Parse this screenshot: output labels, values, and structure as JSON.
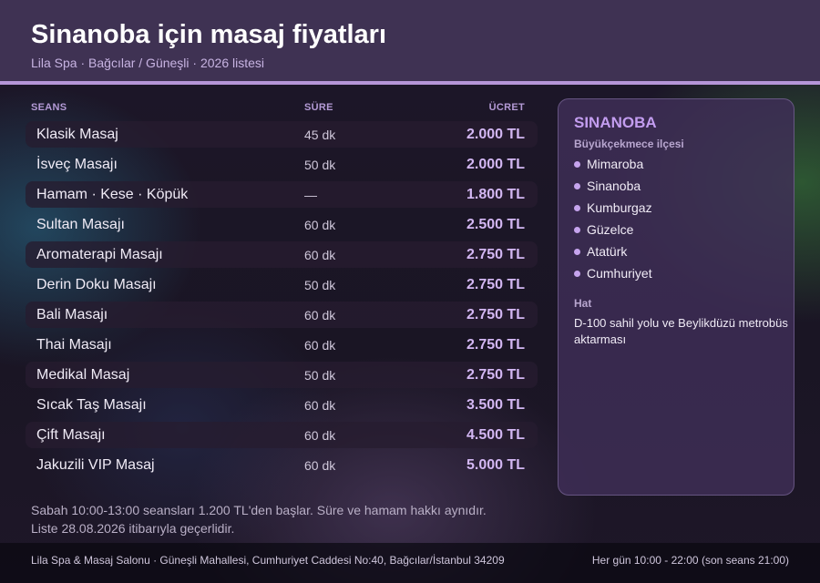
{
  "header": {
    "title": "Sinanoba için masaj fiyatları",
    "subtitle": "Lila Spa · Bağcılar / Güneşli · 2026 listesi"
  },
  "table": {
    "columns": [
      "SEANS",
      "SÜRE",
      "ÜCRET"
    ],
    "rows": [
      {
        "name": "Klasik Masaj",
        "duration": "45 dk",
        "price": "2.000 TL"
      },
      {
        "name": "İsveç Masajı",
        "duration": "50 dk",
        "price": "2.000 TL"
      },
      {
        "name": "Hamam · Kese · Köpük",
        "duration": "—",
        "price": "1.800 TL"
      },
      {
        "name": "Sultan Masajı",
        "duration": "60 dk",
        "price": "2.500 TL"
      },
      {
        "name": "Aromaterapi Masajı",
        "duration": "60 dk",
        "price": "2.750 TL"
      },
      {
        "name": "Derin Doku Masajı",
        "duration": "50 dk",
        "price": "2.750 TL"
      },
      {
        "name": "Bali Masajı",
        "duration": "60 dk",
        "price": "2.750 TL"
      },
      {
        "name": "Thai Masajı",
        "duration": "60 dk",
        "price": "2.750 TL"
      },
      {
        "name": "Medikal Masaj",
        "duration": "50 dk",
        "price": "2.750 TL"
      },
      {
        "name": "Sıcak Taş Masajı",
        "duration": "60 dk",
        "price": "3.500 TL"
      },
      {
        "name": "Çift Masajı",
        "duration": "60 dk",
        "price": "4.500 TL"
      },
      {
        "name": "Jakuzili VIP Masaj",
        "duration": "60 dk",
        "price": "5.000 TL"
      }
    ]
  },
  "sidebar": {
    "title": "SINANOBA",
    "subtitle": "Büyükçekmece ilçesi",
    "neighborhoods": [
      "Mimaroba",
      "Sinanoba",
      "Kumburgaz",
      "Güzelce",
      "Atatürk",
      "Cumhuriyet"
    ],
    "hat_label": "Hat",
    "hat_text": "D-100 sahil yolu ve Beylikdüzü metrobüs aktarması"
  },
  "notes": {
    "line1": "Sabah 10:00-13:00 seansları 1.200 TL'den başlar. Süre ve hamam hakkı aynıdır.",
    "line2": "Liste 28.08.2026 itibarıyla geçerlidir."
  },
  "footer": {
    "address": "Lila Spa & Masaj Salonu · Güneşli Mahallesi, Cumhuriyet Caddesi No:40, Bağcılar/İstanbul 34209",
    "hours": "Her gün 10:00 - 22:00 (son seans 21:00)"
  },
  "colors": {
    "accent": "#b595d8",
    "price": "#d3b7f3",
    "header_bg": "#3f3253"
  }
}
